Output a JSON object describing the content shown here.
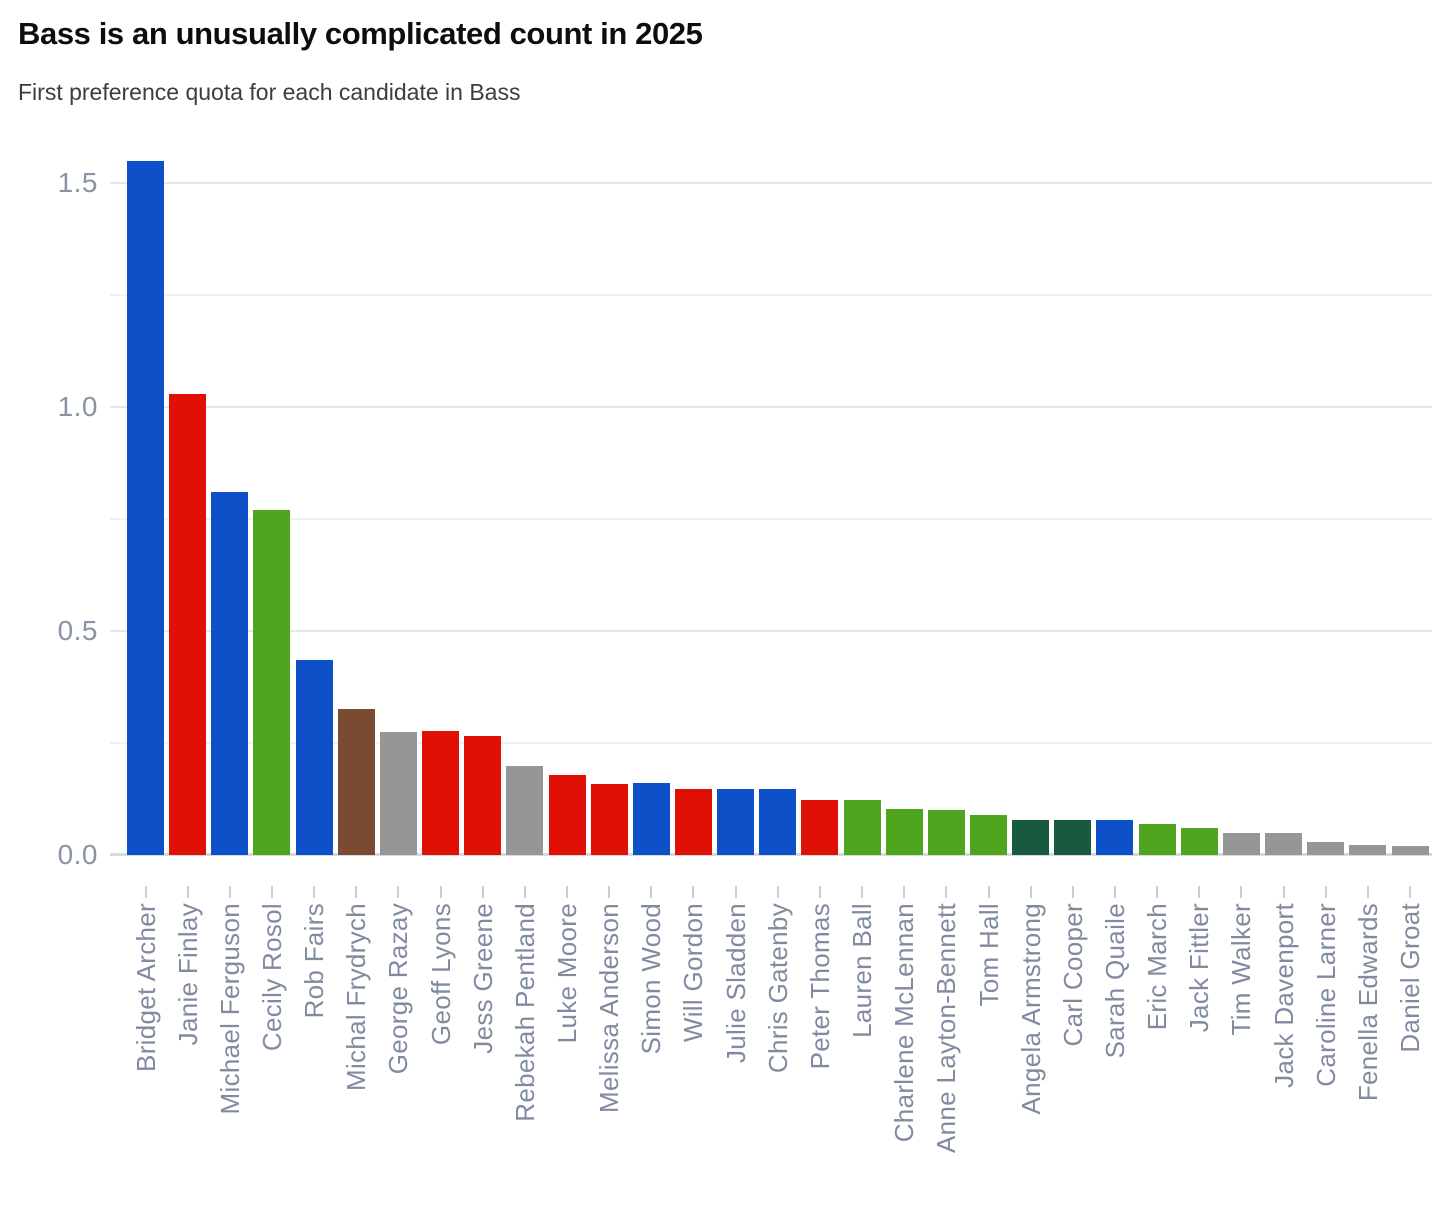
{
  "header": {
    "title": "Bass is an unusually complicated count in 2025",
    "subtitle": "First preference quota for each candidate in Bass"
  },
  "chart_data": {
    "type": "bar",
    "title": "Bass is an unusually complicated count in 2025",
    "subtitle": "First preference quota for each candidate in Bass",
    "xlabel": "",
    "ylabel": "",
    "legend": "none",
    "grid": "on",
    "grid_interval": 0.25,
    "ylim": [
      0,
      1.58
    ],
    "y_ticks": [
      0,
      0.5,
      1,
      1.5
    ],
    "y_tick_labels": [
      "0.0",
      "0.5",
      "1.0",
      "1.5"
    ],
    "x_label_rotation": -90,
    "background_color": "#ffffff",
    "axis_label_color": "#8a94a6",
    "palette": {
      "blue": "#0e50c8",
      "red": "#e01004",
      "green": "#4fa51e",
      "dark_green": "#175a3e",
      "brown": "#7b4b31",
      "gray": "#969696"
    },
    "categories": [
      "Bridget Archer",
      "Janie Finlay",
      "Michael Ferguson",
      "Cecily Rosol",
      "Rob Fairs",
      "Michal Frydrych",
      "George Razay",
      "Geoff Lyons",
      "Jess Greene",
      "Rebekah Pentland",
      "Luke Moore",
      "Melissa Anderson",
      "Simon Wood",
      "Will Gordon",
      "Julie Sladden",
      "Chris Gatenby",
      "Peter Thomas",
      "Lauren Ball",
      "Charlene McLennan",
      "Anne Layton-Bennett",
      "Tom Hall",
      "Angela Armstrong",
      "Carl Cooper",
      "Sarah Quaile",
      "Eric March",
      "Jack Fittler",
      "Tim Walker",
      "Jack Davenport",
      "Caroline Larner",
      "Fenella Edwards",
      "Daniel Groat"
    ],
    "values": [
      1.55,
      1.03,
      0.81,
      0.77,
      0.435,
      0.325,
      0.275,
      0.277,
      0.266,
      0.198,
      0.178,
      0.158,
      0.16,
      0.148,
      0.148,
      0.148,
      0.122,
      0.122,
      0.102,
      0.1,
      0.089,
      0.078,
      0.078,
      0.078,
      0.069,
      0.06,
      0.049,
      0.049,
      0.029,
      0.022,
      0.02
    ],
    "bar_colors": [
      "blue",
      "red",
      "blue",
      "green",
      "blue",
      "brown",
      "gray",
      "red",
      "red",
      "gray",
      "red",
      "red",
      "blue",
      "red",
      "blue",
      "blue",
      "red",
      "green",
      "green",
      "green",
      "green",
      "dark_green",
      "dark_green",
      "blue",
      "green",
      "green",
      "gray",
      "gray",
      "gray",
      "gray",
      "gray"
    ]
  }
}
